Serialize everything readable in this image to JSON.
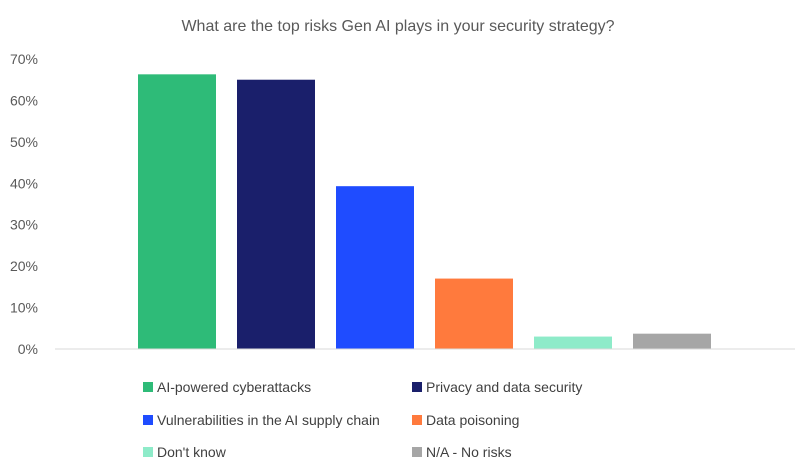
{
  "chart_data": {
    "type": "bar",
    "title": "What are the top risks Gen AI plays in your security strategy?",
    "xlabel": "",
    "ylabel": "",
    "ylim": [
      0,
      0.7
    ],
    "yticks": [
      0,
      0.1,
      0.2,
      0.3,
      0.4,
      0.5,
      0.6,
      0.7
    ],
    "ytick_labels": [
      "0%",
      "10%",
      "20%",
      "30%",
      "40%",
      "50%",
      "60%",
      "70%"
    ],
    "grid": false,
    "legend_position": "bottom",
    "series": [
      {
        "name": "AI-powered cyberattacks",
        "value": 0.663,
        "color": "#2EBB78"
      },
      {
        "name": "Privacy and data security",
        "value": 0.65,
        "color": "#1A1F6B"
      },
      {
        "name": "Vulnerabilities in the AI supply chain",
        "value": 0.393,
        "color": "#1F4CFF"
      },
      {
        "name": "Data poisoning",
        "value": 0.17,
        "color": "#FF7A3D"
      },
      {
        "name": "Don't know",
        "value": 0.03,
        "color": "#8EEBC9"
      },
      {
        "name": "N/A - No risks",
        "value": 0.037,
        "color": "#A6A6A6"
      }
    ]
  }
}
